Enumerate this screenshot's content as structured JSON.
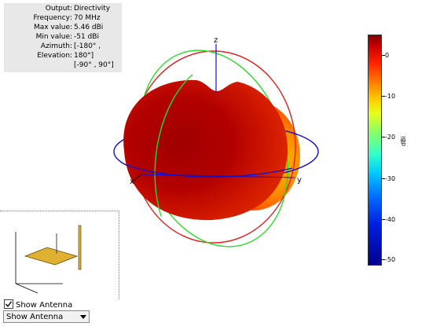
{
  "info": [
    {
      "label": "Output",
      "value": "Directivity"
    },
    {
      "label": "Frequency",
      "value": "70 MHz"
    },
    {
      "label": "Max value",
      "value": "5.46 dBi"
    },
    {
      "label": "Min value",
      "value": "-51 dBi"
    },
    {
      "label": "Azimuth",
      "value": "[-180° ,"
    },
    {
      "label": "Elevation",
      "value": "180°]"
    },
    {
      "label": "",
      "value": "[-90° , 90°]"
    }
  ],
  "axes": {
    "x": "x",
    "y": "y",
    "z": "z"
  },
  "colorbar": {
    "ticks": [
      "0",
      "-10",
      "-20",
      "-30",
      "-40",
      "-50"
    ],
    "unit": "dBi",
    "max": 5.46,
    "min": -51
  },
  "show_antenna": {
    "checkbox_label": "Show Antenna",
    "checked": true,
    "select_value": "Show Antenna"
  }
}
